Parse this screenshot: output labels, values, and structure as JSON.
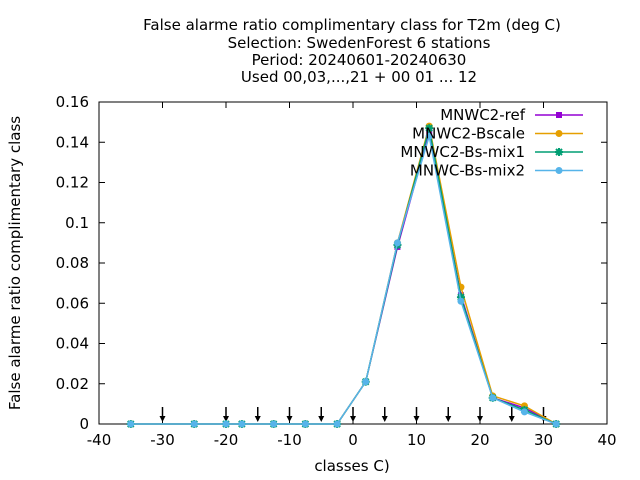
{
  "chart_data": {
    "type": "line",
    "title_lines": [
      "False alarme ratio complimentary class  for T2m (deg C)",
      "Selection: SwedenForest      6 stations",
      "Period: 20240601-20240630",
      "Used 00,03,...,21 + 00 01 ... 12"
    ],
    "xlabel": "classes C)",
    "ylabel": "False alarme ratio complimentary class",
    "xlim": [
      -40,
      40
    ],
    "ylim": [
      0,
      0.16
    ],
    "xticks": [
      -40,
      -30,
      -20,
      -10,
      0,
      10,
      20,
      30,
      40
    ],
    "yticks": [
      0,
      0.02,
      0.04,
      0.06,
      0.08,
      0.1,
      0.12,
      0.14,
      0.16
    ],
    "xtick_labels": [
      "-40",
      "-30",
      "-20",
      "-10",
      "0",
      "10",
      "20",
      "30",
      "40"
    ],
    "ytick_labels": [
      "0",
      "0.02",
      "0.04",
      "0.06",
      "0.08",
      "0.1",
      "0.12",
      "0.14",
      "0.16"
    ],
    "legend_position": "top-right",
    "grid": false,
    "arrow_markers_x": [
      -30,
      -20,
      -15,
      -10,
      -5,
      0,
      5,
      10,
      15,
      20,
      25,
      30
    ],
    "x": [
      -35,
      -25,
      -20,
      -17.5,
      -12.5,
      -7.5,
      -2.5,
      2,
      7,
      12,
      17,
      22,
      27,
      32
    ],
    "series": [
      {
        "name": "MNWC2-ref",
        "color": "#9400d3",
        "marker": "square",
        "values": [
          0,
          0,
          0,
          0,
          0,
          0,
          0,
          0.021,
          0.088,
          0.145,
          0.064,
          0.013,
          0.008,
          0
        ]
      },
      {
        "name": "MNWC2-Bscale",
        "color": "#e69f00",
        "marker": "circle",
        "values": [
          0,
          0,
          0,
          0,
          0,
          0,
          0,
          0.021,
          0.09,
          0.148,
          0.068,
          0.014,
          0.009,
          0
        ]
      },
      {
        "name": "MNWC2-Bs-mix1",
        "color": "#009e73",
        "marker": "star",
        "values": [
          0,
          0,
          0,
          0,
          0,
          0,
          0,
          0.021,
          0.089,
          0.147,
          0.063,
          0.013,
          0.007,
          0
        ]
      },
      {
        "name": "MNWC-Bs-mix2",
        "color": "#56b4e9",
        "marker": "circle",
        "values": [
          0,
          0,
          0,
          0,
          0,
          0,
          0,
          0.021,
          0.09,
          0.143,
          0.061,
          0.013,
          0.006,
          0
        ]
      }
    ]
  }
}
